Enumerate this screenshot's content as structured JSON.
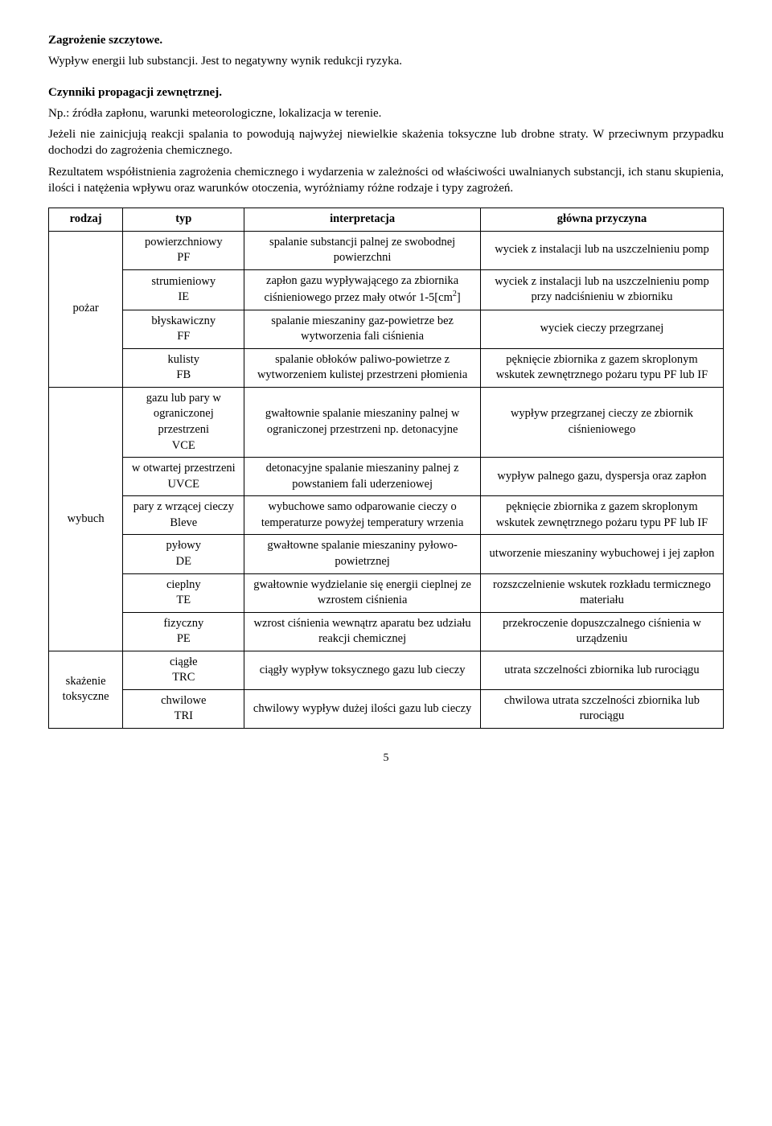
{
  "title1": "Zagrożenie szczytowe.",
  "para1": "Wypływ energii lub substancji. Jest to negatywny wynik redukcji ryzyka.",
  "title2": "Czynniki propagacji zewnętrznej.",
  "para2a": "Np.: źródła zapłonu, warunki meteorologiczne, lokalizacja w terenie.",
  "para2b": "Jeżeli nie zainicjują reakcji spalania to powodują najwyżej niewielkie skażenia toksyczne lub drobne straty. W przeciwnym przypadku dochodzi do zagrożenia chemicznego.",
  "para2c": "Rezultatem współistnienia zagrożenia chemicznego i wydarzenia w zależności od właściwości uwalnianych substancji, ich stanu skupienia, ilości i natężenia wpływu oraz warunków otoczenia, wyróżniamy różne rodzaje i typy zagrożeń.",
  "headers": {
    "rodzaj": "rodzaj",
    "typ": "typ",
    "interpretacja": "interpretacja",
    "przyczyna": "główna przyczyna"
  },
  "groups": [
    {
      "rodzaj": "pożar",
      "rows": [
        {
          "typ": "powierzchniowy\nPF",
          "interp": "spalanie substancji palnej ze swobodnej powierzchni",
          "przyc": "wyciek z instalacji lub na uszczelnieniu pomp"
        },
        {
          "typ": "strumieniowy\nIE",
          "interp_html": "zapłon gazu wypływającego za zbiornika ciśnieniowego przez mały otwór 1-5[cm<sup>2</sup>]",
          "przyc": "wyciek z instalacji lub na uszczelnieniu pomp przy nadciśnieniu w zbiorniku"
        },
        {
          "typ": "błyskawiczny\nFF",
          "interp": "spalanie mieszaniny gaz-powietrze bez wytworzenia fali ciśnienia",
          "przyc": "wyciek cieczy przegrzanej"
        },
        {
          "typ": "kulisty\nFB",
          "interp": "spalanie obłoków paliwo-powietrze z wytworzeniem kulistej przestrzeni płomienia",
          "przyc": "pęknięcie zbiornika z gazem skroplonym wskutek zewnętrznego pożaru typu PF lub IF"
        }
      ]
    },
    {
      "rodzaj": "wybuch",
      "rows": [
        {
          "typ": "gazu lub pary w ograniczonej przestrzeni\nVCE",
          "interp": "gwałtownie spalanie mieszaniny palnej w ograniczonej przestrzeni np. detonacyjne",
          "przyc": "wypływ przegrzanej cieczy ze zbiornik ciśnieniowego"
        },
        {
          "typ": "w otwartej przestrzeni\nUVCE",
          "interp": "detonacyjne spalanie mieszaniny palnej z powstaniem fali uderzeniowej",
          "przyc": "wypływ palnego gazu, dyspersja oraz zapłon"
        },
        {
          "typ": "pary z wrzącej cieczy\nBleve",
          "interp": "wybuchowe samo odparowanie cieczy o temperaturze powyżej temperatury wrzenia",
          "przyc": "pęknięcie zbiornika z gazem skroplonym wskutek zewnętrznego pożaru typu PF lub IF"
        },
        {
          "typ": "pyłowy\nDE",
          "interp": "gwałtowne spalanie mieszaniny pyłowo-powietrznej",
          "przyc": "utworzenie mieszaniny wybuchowej i jej zapłon"
        },
        {
          "typ": "cieplny\nTE",
          "interp": "gwałtownie wydzielanie się energii cieplnej ze wzrostem ciśnienia",
          "przyc": "rozszczelnienie wskutek rozkładu termicznego materiału"
        },
        {
          "typ": "fizyczny\nPE",
          "interp": "wzrost ciśnienia wewnątrz aparatu bez udziału reakcji chemicznej",
          "przyc": "przekroczenie dopuszczalnego ciśnienia w urządzeniu"
        }
      ]
    },
    {
      "rodzaj": "skażenie toksyczne",
      "rows": [
        {
          "typ": "ciągłe\nTRC",
          "interp": "ciągły wypływ toksycznego gazu lub cieczy",
          "przyc": "utrata szczelności zbiornika lub rurociągu"
        },
        {
          "typ": "chwilowe\nTRI",
          "interp": "chwilowy wypływ dużej ilości gazu lub cieczy",
          "przyc": "chwilowa utrata szczelności zbiornika lub rurociągu"
        }
      ]
    }
  ],
  "page_number": "5"
}
